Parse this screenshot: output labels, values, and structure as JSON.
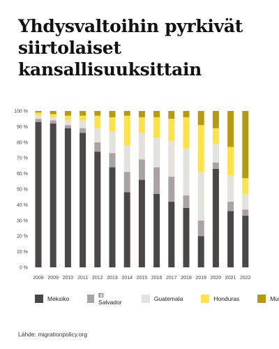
{
  "title": "Yhdysvaltoihin pyrkivät siirtolaiset kansallisuuksittain",
  "source": "Lähde: migrationpolicy.org",
  "chart_data": {
    "type": "bar",
    "stacked": true,
    "percent": true,
    "categories": [
      "2008",
      "2009",
      "2010",
      "2011",
      "2012",
      "2013",
      "2014",
      "2015",
      "2016",
      "2017",
      "2018",
      "2019",
      "2020",
      "2021",
      "2022"
    ],
    "ylim": [
      0,
      100
    ],
    "yticks": [
      "0 %",
      "10 %",
      "20 %",
      "30 %",
      "40 %",
      "50 %",
      "60 %",
      "70 %",
      "80 %",
      "90 %",
      "100 %"
    ],
    "grid": false,
    "legend_position": "bottom",
    "series": [
      {
        "name": "Meksiko",
        "color": "#4a4747",
        "values": [
          93,
          92,
          89,
          86,
          74,
          64,
          48,
          56,
          47,
          42,
          38,
          20,
          63,
          36,
          33
        ]
      },
      {
        "name": "El Salvador",
        "color": "#a9a4a3",
        "values": [
          2,
          2,
          2,
          3,
          6,
          9,
          13,
          13,
          17,
          16,
          8,
          10,
          4,
          6,
          4
        ]
      },
      {
        "name": "Guatemala",
        "color": "#e3e2de",
        "values": [
          2,
          2,
          3,
          5,
          9,
          14,
          17,
          17,
          19,
          23,
          30,
          31,
          12,
          17,
          10
        ]
      },
      {
        "name": "Honduras",
        "color": "#fde34b",
        "values": [
          2,
          2,
          3,
          3,
          8,
          9,
          19,
          10,
          13,
          14,
          20,
          30,
          10,
          18,
          10
        ]
      },
      {
        "name": "Muut",
        "color": "#b69a12",
        "values": [
          1,
          2,
          3,
          3,
          3,
          4,
          3,
          4,
          4,
          5,
          4,
          9,
          11,
          23,
          43
        ]
      }
    ]
  }
}
